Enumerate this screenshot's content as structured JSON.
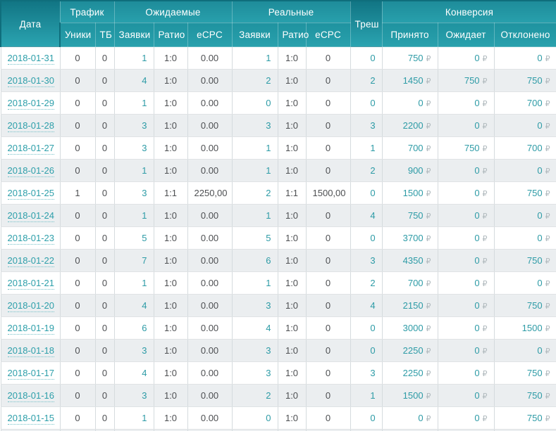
{
  "header": {
    "date": "Дата",
    "traffic": "Трафик",
    "expected": "Ожидаемые",
    "real": "Реальные",
    "tresh": "Треш",
    "conversion": "Конверсия",
    "sub": {
      "uniques": "Уники",
      "tb": "ТБ",
      "apps_expected": "Заявки",
      "ratio_expected": "Ратио",
      "ecpc_expected": "eCPC",
      "apps_real": "Заявки",
      "ratio_real": "Ратио",
      "ecpc_real": "eCPC",
      "accepted": "Принято",
      "waiting": "Ожидает",
      "declined": "Отклонено"
    }
  },
  "currency_symbol": "₽",
  "colors": {
    "header_teal": "#2097a4",
    "header_dark_teal": "#117584",
    "link_teal": "#2d9ba6",
    "stripe": "#ebeef0",
    "ruble_gray": "#b2bbbf",
    "text_dark": "#4d4f52"
  },
  "rows": [
    [
      "2018-01-31",
      "0",
      "0",
      "1",
      "1:0",
      "0.00",
      "1",
      "1:0",
      "0",
      "0",
      "750",
      "0",
      "0"
    ],
    [
      "2018-01-30",
      "0",
      "0",
      "4",
      "1:0",
      "0.00",
      "2",
      "1:0",
      "0",
      "2",
      "1450",
      "750",
      "750"
    ],
    [
      "2018-01-29",
      "0",
      "0",
      "1",
      "1:0",
      "0.00",
      "0",
      "1:0",
      "0",
      "0",
      "0",
      "0",
      "700"
    ],
    [
      "2018-01-28",
      "0",
      "0",
      "3",
      "1:0",
      "0.00",
      "3",
      "1:0",
      "0",
      "3",
      "2200",
      "0",
      "0"
    ],
    [
      "2018-01-27",
      "0",
      "0",
      "3",
      "1:0",
      "0.00",
      "1",
      "1:0",
      "0",
      "1",
      "700",
      "750",
      "700"
    ],
    [
      "2018-01-26",
      "0",
      "0",
      "1",
      "1:0",
      "0.00",
      "1",
      "1:0",
      "0",
      "2",
      "900",
      "0",
      "0"
    ],
    [
      "2018-01-25",
      "1",
      "0",
      "3",
      "1:1",
      "2250,00",
      "2",
      "1:1",
      "1500,00",
      "0",
      "1500",
      "0",
      "750"
    ],
    [
      "2018-01-24",
      "0",
      "0",
      "1",
      "1:0",
      "0.00",
      "1",
      "1:0",
      "0",
      "4",
      "750",
      "0",
      "0"
    ],
    [
      "2018-01-23",
      "0",
      "0",
      "5",
      "1:0",
      "0.00",
      "5",
      "1:0",
      "0",
      "0",
      "3700",
      "0",
      "0"
    ],
    [
      "2018-01-22",
      "0",
      "0",
      "7",
      "1:0",
      "0.00",
      "6",
      "1:0",
      "0",
      "3",
      "4350",
      "0",
      "750"
    ],
    [
      "2018-01-21",
      "0",
      "0",
      "1",
      "1:0",
      "0.00",
      "1",
      "1:0",
      "0",
      "2",
      "700",
      "0",
      "0"
    ],
    [
      "2018-01-20",
      "0",
      "0",
      "4",
      "1:0",
      "0.00",
      "3",
      "1:0",
      "0",
      "4",
      "2150",
      "0",
      "750"
    ],
    [
      "2018-01-19",
      "0",
      "0",
      "6",
      "1:0",
      "0.00",
      "4",
      "1:0",
      "0",
      "0",
      "3000",
      "0",
      "1500"
    ],
    [
      "2018-01-18",
      "0",
      "0",
      "3",
      "1:0",
      "0.00",
      "3",
      "1:0",
      "0",
      "0",
      "2250",
      "0",
      "0"
    ],
    [
      "2018-01-17",
      "0",
      "0",
      "4",
      "1:0",
      "0.00",
      "3",
      "1:0",
      "0",
      "3",
      "2250",
      "0",
      "750"
    ],
    [
      "2018-01-16",
      "0",
      "0",
      "3",
      "1:0",
      "0.00",
      "2",
      "1:0",
      "0",
      "1",
      "1500",
      "0",
      "750"
    ],
    [
      "2018-01-15",
      "0",
      "0",
      "1",
      "1:0",
      "0.00",
      "0",
      "1:0",
      "0",
      "0",
      "0",
      "0",
      "750"
    ]
  ]
}
